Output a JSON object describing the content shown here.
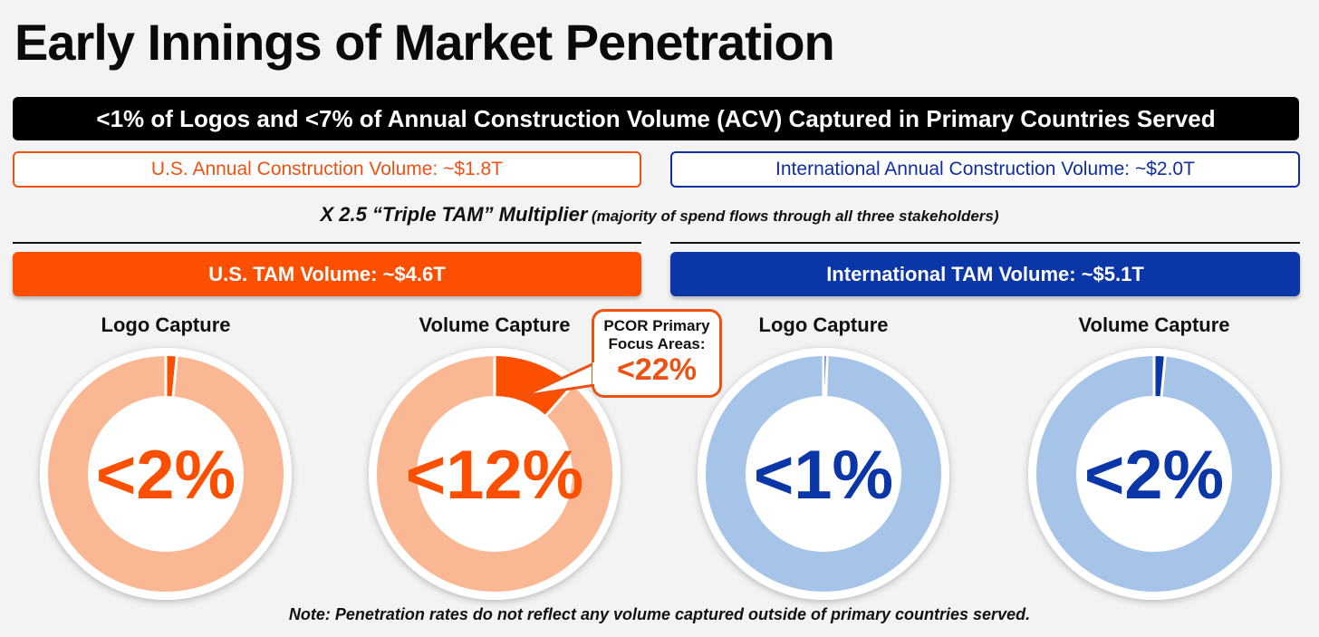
{
  "title": "Early Innings of Market Penetration",
  "banner": "<1% of Logos and <7% of Annual Construction Volume (ACV) Captured in Primary Countries Served",
  "acv": {
    "us": "U.S. Annual Construction Volume: ~$1.8T",
    "intl": "International Annual Construction Volume: ~$2.0T"
  },
  "multiplier": {
    "main": "X 2.5 “Triple TAM” Multiplier",
    "sub": "(majority of spend flows through all three stakeholders)"
  },
  "tam": {
    "us": "U.S. TAM Volume: ~$4.6T",
    "intl": "International TAM Volume: ~$5.1T"
  },
  "callout": {
    "label": "PCOR Primary Focus Areas:",
    "value": "<22%"
  },
  "note": "Note: Penetration rates do not reflect any volume captured outside of primary countries served.",
  "colors": {
    "us_accent": "#fc5000",
    "us_light": "#f9b794",
    "intl_accent": "#0b36a8",
    "intl_light": "#a6c4e7"
  },
  "chart_data": [
    {
      "type": "pie",
      "title": "Logo Capture",
      "center_label": "<2%",
      "series": [
        {
          "name": "Captured",
          "value": 1.5
        },
        {
          "name": "Remaining",
          "value": 98.5
        }
      ],
      "accent": "#fc5000",
      "track": "#f9b794",
      "text_color": "#fc5000"
    },
    {
      "type": "pie",
      "title": "Volume Capture",
      "center_label": "<12%",
      "series": [
        {
          "name": "Captured",
          "value": 11.5
        },
        {
          "name": "Remaining",
          "value": 88.5
        }
      ],
      "accent": "#fc5000",
      "track": "#f9b794",
      "text_color": "#fc5000"
    },
    {
      "type": "pie",
      "title": "Logo Capture",
      "center_label": "<1%",
      "series": [
        {
          "name": "Captured",
          "value": 0.5
        },
        {
          "name": "Remaining",
          "value": 99.5
        }
      ],
      "accent": "#0b36a8",
      "track": "#a6c4e7",
      "text_color": "#0b36a8"
    },
    {
      "type": "pie",
      "title": "Volume Capture",
      "center_label": "<2%",
      "series": [
        {
          "name": "Captured",
          "value": 1.5
        },
        {
          "name": "Remaining",
          "value": 98.5
        }
      ],
      "accent": "#0b36a8",
      "track": "#a6c4e7",
      "text_color": "#0b36a8"
    }
  ]
}
